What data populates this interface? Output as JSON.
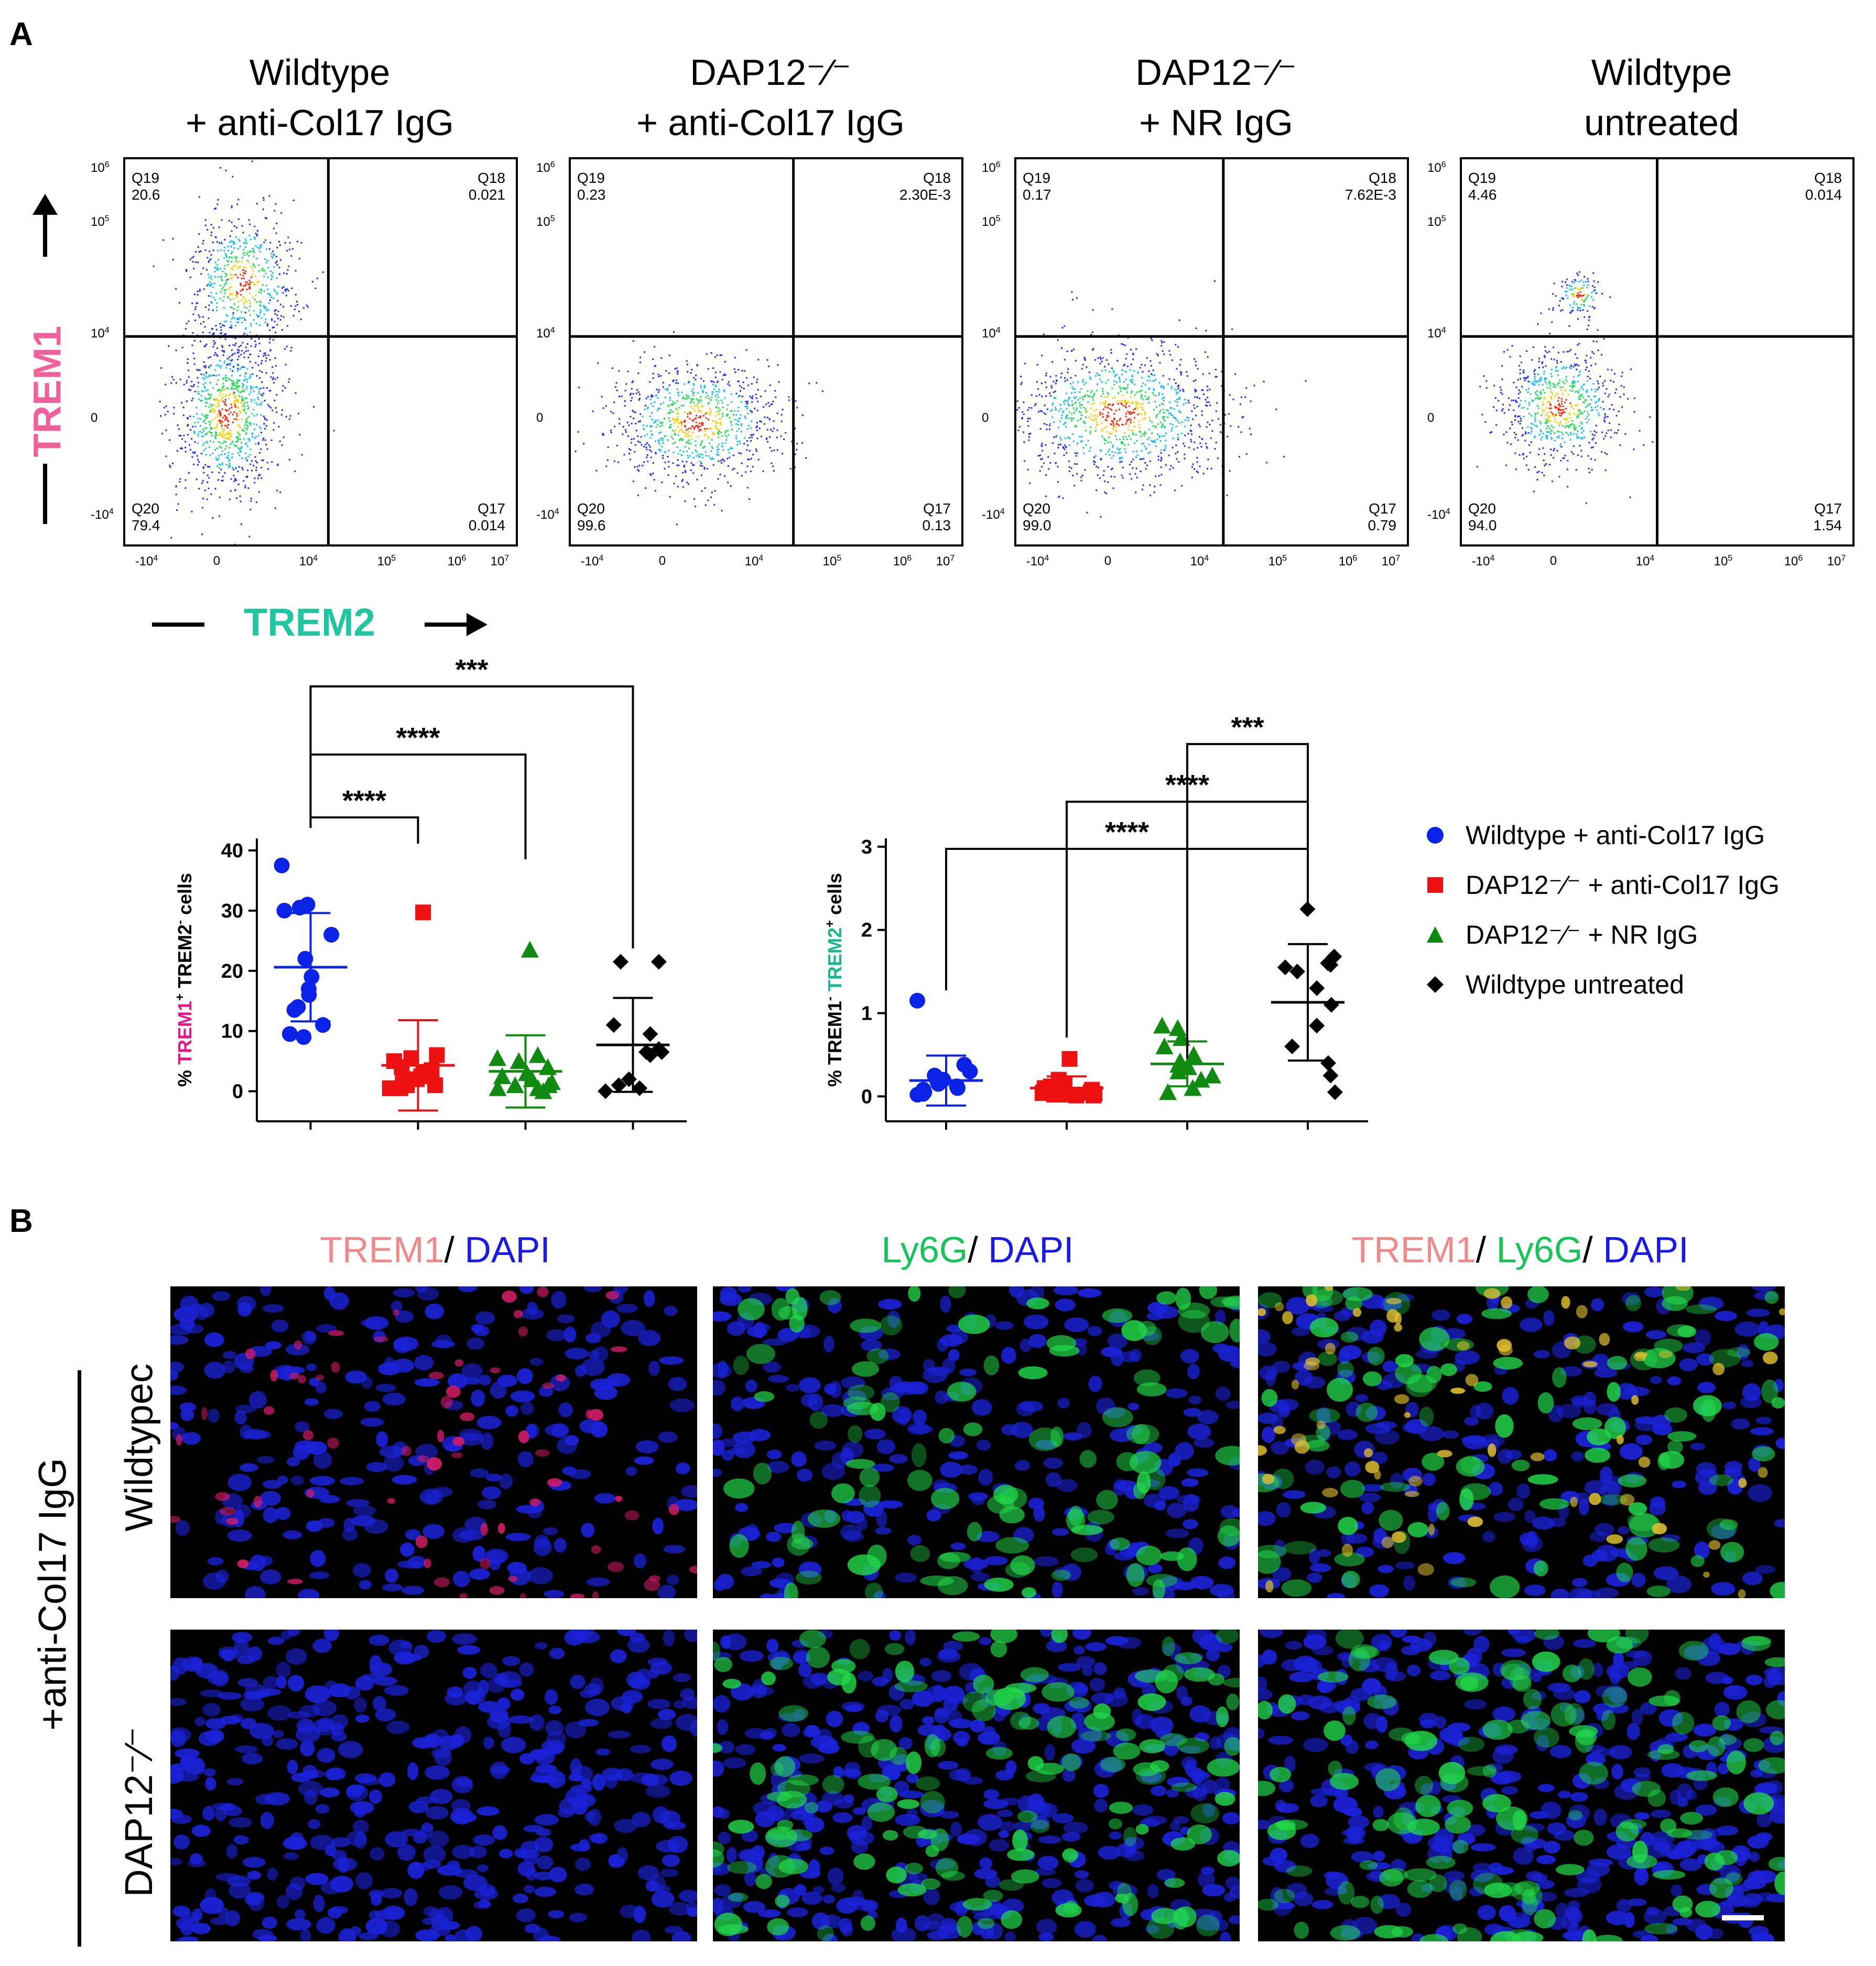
{
  "panel_a_letter": "A",
  "panel_b_letter": "B",
  "facs": {
    "panels": [
      {
        "title1": "Wildtype",
        "title2": "+ anti-Col17 IgG",
        "q19": "Q19",
        "q19v": "20.6",
        "q18": "Q18",
        "q18v": "0.021",
        "q20": "Q20",
        "q20v": "79.4",
        "q17": "Q17",
        "q17v": "0.014"
      },
      {
        "title1": "DAP12⁻⁄⁻",
        "title2": "+ anti-Col17 IgG",
        "q19": "Q19",
        "q19v": "0.23",
        "q18": "Q18",
        "q18v": "2.30E-3",
        "q20": "Q20",
        "q20v": "99.6",
        "q17": "Q17",
        "q17v": "0.13"
      },
      {
        "title1": "DAP12⁻⁄⁻",
        "title2": "+ NR IgG",
        "q19": "Q19",
        "q19v": "0.17",
        "q18": "Q18",
        "q18v": "7.62E-3",
        "q20": "Q20",
        "q20v": "99.0",
        "q17": "Q17",
        "q17v": "0.79"
      },
      {
        "title1": "Wildtype",
        "title2": "untreated",
        "q19": "Q19",
        "q19v": "4.46",
        "q18": "Q18",
        "q18v": "0.014",
        "q20": "Q20",
        "q20v": "94.0",
        "q17": "Q17",
        "q17v": "1.54"
      }
    ],
    "y_axis_label": "TREM1",
    "x_axis_label": "TREM2",
    "y_ticks": [
      "10",
      "10",
      "10",
      "0",
      "-10"
    ],
    "y_tick_exps": [
      "6",
      "5",
      "4",
      "",
      "4"
    ],
    "x_ticks": [
      "-10",
      "0",
      "10",
      "10",
      "10",
      "10"
    ],
    "x_tick_exps": [
      "4",
      "",
      "4",
      "5",
      "6",
      "7"
    ],
    "colors": {
      "trem1": "#f0609a",
      "trem2": "#1fc6a0"
    }
  },
  "chart_data": [
    {
      "type": "scatter",
      "title": "",
      "ylabel_parts": [
        "% ",
        "TREM1",
        "+",
        " TREM2",
        "-",
        " cells"
      ],
      "ylim": [
        -5,
        42
      ],
      "yticks": [
        "0",
        "10",
        "20",
        "30",
        "40"
      ],
      "series": [
        {
          "name": "Wildtype + anti-Col17 IgG",
          "color": "#0a23e6",
          "marker": "circle",
          "mean": 20.6,
          "sd": 9.0,
          "values": [
            37.5,
            31,
            30.5,
            30,
            26,
            22,
            19,
            17,
            16,
            14,
            13.5,
            11,
            9.5,
            9
          ]
        },
        {
          "name": "DAP12⁻⁄⁻ + anti-Col17 IgG",
          "color": "#ee1111",
          "marker": "square",
          "mean": 4.3,
          "sd": 7.5,
          "values": [
            29.7,
            6,
            5.5,
            5,
            4,
            3.5,
            3,
            2.5,
            2,
            1.5,
            1,
            1,
            0.5,
            0.5
          ]
        },
        {
          "name": "DAP12⁻⁄⁻ + NR IgG",
          "color": "#118a11",
          "marker": "triangle",
          "mean": 3.3,
          "sd": 6.0,
          "values": [
            23.5,
            6,
            5.5,
            5,
            4,
            3,
            2.5,
            2,
            1.5,
            1,
            1,
            0.5,
            0.5,
            0
          ]
        },
        {
          "name": "Wildtype untreated",
          "color": "#000000",
          "marker": "diamond",
          "mean": 7.7,
          "sd": 7.8,
          "values": [
            21.5,
            21.5,
            11,
            9.5,
            7,
            6.5,
            6.5,
            6,
            2,
            1,
            0.5,
            0
          ]
        }
      ],
      "comparisons": [
        {
          "from": 0,
          "to": 1,
          "label": "****"
        },
        {
          "from": 0,
          "to": 2,
          "label": "****"
        },
        {
          "from": 0,
          "to": 3,
          "label": "***"
        }
      ]
    },
    {
      "type": "scatter",
      "title": "",
      "ylabel_parts": [
        "% TREM1",
        "-",
        " ",
        "TREM2",
        "+",
        " cells"
      ],
      "ylim": [
        -0.3,
        3.1
      ],
      "yticks": [
        "0",
        "1",
        "2",
        "3"
      ],
      "series": [
        {
          "name": "Wildtype + anti-Col17 IgG",
          "color": "#0a23e6",
          "marker": "circle",
          "mean": 0.19,
          "sd": 0.3,
          "values": [
            1.15,
            0.38,
            0.3,
            0.25,
            0.2,
            0.18,
            0.15,
            0.12,
            0.1,
            0.08,
            0.05,
            0.04,
            0.03,
            0.02
          ]
        },
        {
          "name": "DAP12⁻⁄⁻ + anti-Col17 IgG",
          "color": "#ee1111",
          "marker": "square",
          "mean": 0.1,
          "sd": 0.14,
          "values": [
            0.45,
            0.2,
            0.15,
            0.12,
            0.1,
            0.08,
            0.06,
            0.05,
            0.04,
            0.03,
            0.02,
            0.02,
            0.01,
            0.01
          ]
        },
        {
          "name": "DAP12⁻⁄⁻ + NR IgG",
          "color": "#118a11",
          "marker": "triangle",
          "mean": 0.39,
          "sd": 0.27,
          "values": [
            0.85,
            0.82,
            0.7,
            0.6,
            0.5,
            0.42,
            0.38,
            0.35,
            0.3,
            0.25,
            0.2,
            0.1,
            0.05
          ]
        },
        {
          "name": "Wildtype untreated",
          "color": "#000000",
          "marker": "diamond",
          "mean": 1.13,
          "sd": 0.7,
          "values": [
            2.25,
            1.68,
            1.6,
            1.58,
            1.55,
            1.5,
            1.3,
            1.1,
            0.85,
            0.6,
            0.4,
            0.25,
            0.05
          ]
        }
      ],
      "comparisons": [
        {
          "from": 0,
          "to": 3,
          "label": "****"
        },
        {
          "from": 1,
          "to": 3,
          "label": "****"
        },
        {
          "from": 2,
          "to": 3,
          "label": "***"
        }
      ]
    }
  ],
  "legend": [
    {
      "label": "Wildtype + anti-Col17 IgG",
      "color": "#0a23e6",
      "marker": "circle"
    },
    {
      "label": "DAP12⁻⁄⁻ + anti-Col17 IgG",
      "color": "#ee1111",
      "marker": "square"
    },
    {
      "label": "DAP12⁻⁄⁻ + NR IgG",
      "color": "#118a11",
      "marker": "triangle"
    },
    {
      "label": "Wildtype untreated",
      "color": "#000000",
      "marker": "diamond"
    }
  ],
  "micro": {
    "col1_a": "TREM1",
    "col1_b": "/ ",
    "col1_c": "DAPI",
    "col2_a": "Ly6G",
    "col2_b": "/ ",
    "col2_c": "DAPI",
    "col3_a": "TREM1",
    "col3_b": "/ ",
    "col3_c": "Ly6G",
    "col3_d": "/ ",
    "col3_e": "DAPI",
    "row_group": "+anti-Col17 IgG",
    "row1": "Wildtypec",
    "row2": "DAP12⁻⁄⁻",
    "colors": {
      "trem1": "#f08a8a",
      "ly6g": "#17c45a",
      "dapi": "#1a1ae6"
    }
  }
}
